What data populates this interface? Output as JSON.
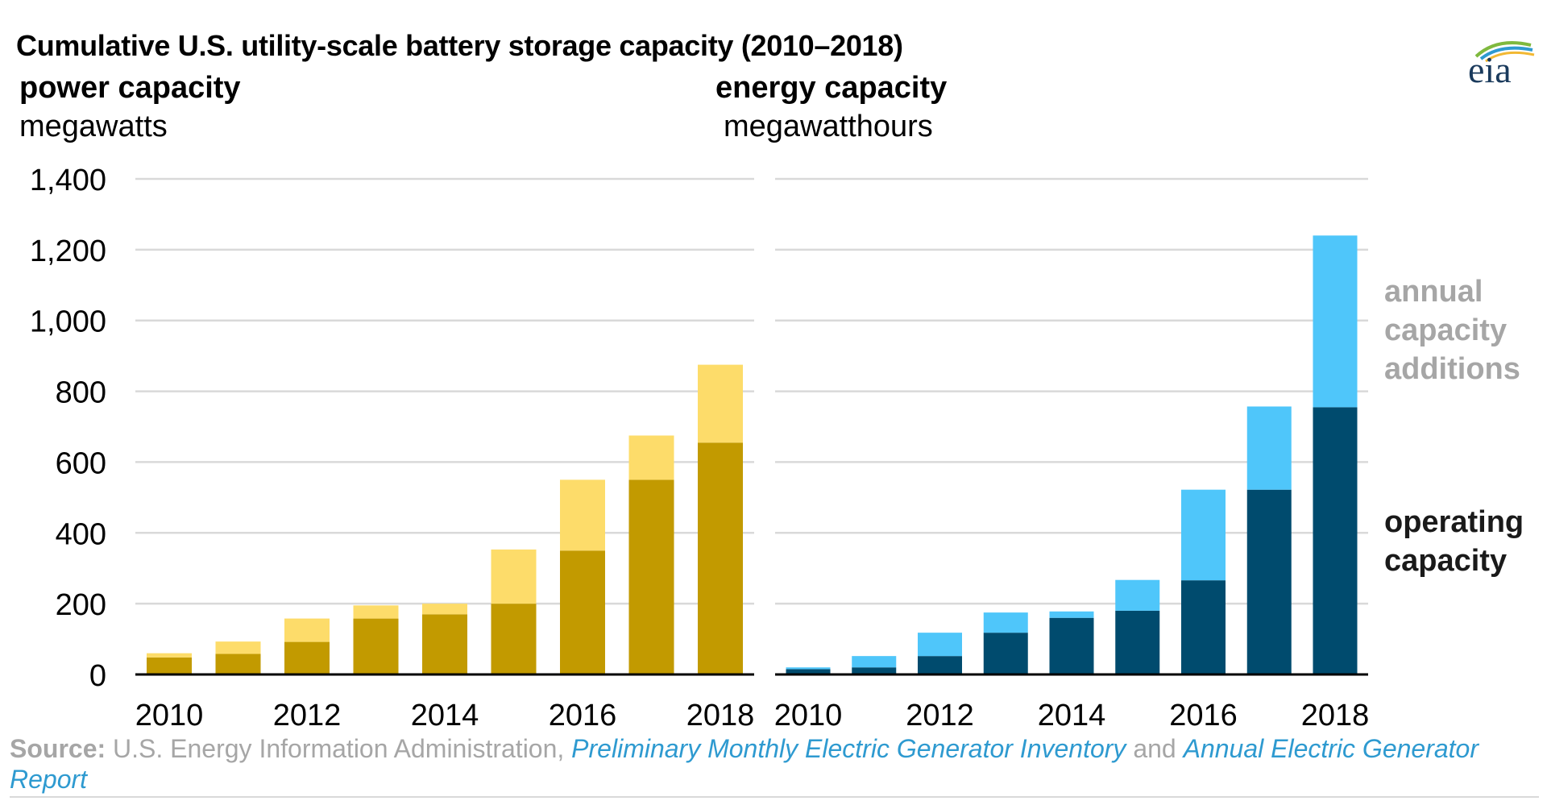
{
  "title": "Cumulative U.S. utility-scale battery storage capacity (2010–2018)",
  "logo_text": "eia",
  "colors": {
    "power_operating": "#c29a00",
    "power_additions": "#fddc6a",
    "energy_operating": "#004b6e",
    "energy_additions": "#4fc6fa",
    "grid": "#d9d9d9",
    "legend_additions": "#a6a6a6",
    "legend_operating": "#1a1a1a",
    "source_link": "#2e9ad0"
  },
  "legend": {
    "additions": [
      "annual",
      "capacity",
      "additions"
    ],
    "operating": [
      "operating",
      "capacity"
    ]
  },
  "source": {
    "label": "Source:",
    "text1": "U.S. Energy Information Administration,",
    "link1": "Preliminary Monthly Electric Generator Inventory",
    "text2": "and",
    "link2": "Annual Electric Generator Report"
  },
  "chart_data": [
    {
      "type": "bar",
      "stacked": true,
      "title": "power capacity",
      "ylabel": "megawatts",
      "x": [
        2010,
        2011,
        2012,
        2013,
        2014,
        2015,
        2016,
        2017,
        2018
      ],
      "x_tick_labels": [
        "2010",
        "2012",
        "2014",
        "2016",
        "2018"
      ],
      "ylim": [
        0,
        1400
      ],
      "y_ticks": [
        0,
        200,
        400,
        600,
        800,
        1000,
        1200,
        1400
      ],
      "y_tick_labels": [
        "0",
        "200",
        "400",
        "600",
        "800",
        "1,000",
        "1,200",
        "1,400"
      ],
      "grid": true,
      "series": [
        {
          "name": "operating capacity",
          "values": [
            48,
            58,
            92,
            158,
            170,
            200,
            350,
            550,
            655
          ]
        },
        {
          "name": "annual capacity additions",
          "values": [
            12,
            35,
            66,
            37,
            30,
            153,
            200,
            125,
            220
          ]
        }
      ]
    },
    {
      "type": "bar",
      "stacked": true,
      "title": "energy capacity",
      "ylabel": "megawatthours",
      "x": [
        2010,
        2011,
        2012,
        2013,
        2014,
        2015,
        2016,
        2017,
        2018
      ],
      "x_tick_labels": [
        "2010",
        "2012",
        "2014",
        "2016",
        "2018"
      ],
      "ylim": [
        0,
        1400
      ],
      "y_ticks": [
        0,
        200,
        400,
        600,
        800,
        1000,
        1200,
        1400
      ],
      "grid": true,
      "series": [
        {
          "name": "operating capacity",
          "values": [
            15,
            20,
            52,
            118,
            160,
            180,
            266,
            522,
            755
          ]
        },
        {
          "name": "annual capacity additions",
          "values": [
            5,
            32,
            66,
            57,
            18,
            87,
            256,
            235,
            485
          ]
        }
      ]
    }
  ]
}
